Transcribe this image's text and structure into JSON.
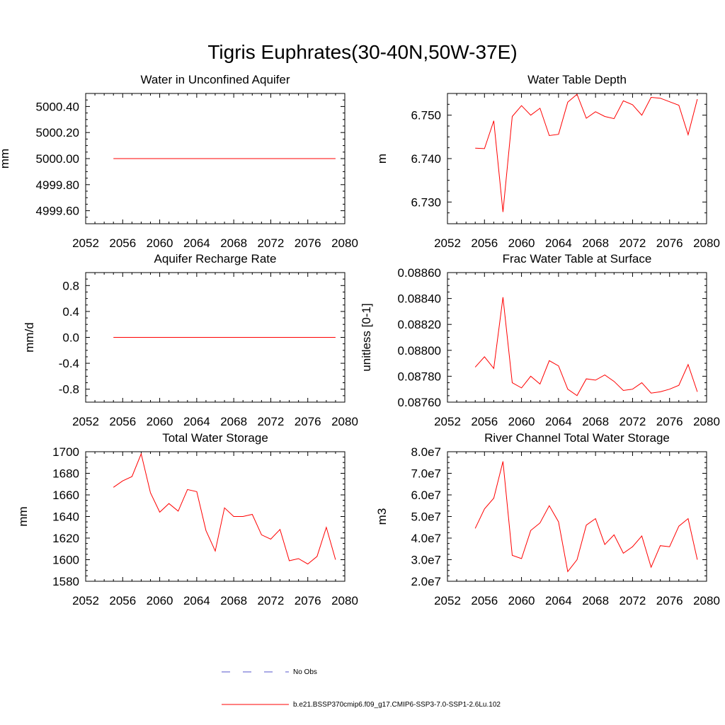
{
  "figure": {
    "title": "Tigris Euphrates(30-40N,50W-37E)"
  },
  "legend": {
    "obs_label": "No Obs",
    "obs_color": "#5555cc",
    "model_label": "b.e21.BSSP370cmip6.f09_g17.CMIP6-SSP3-7.0-SSP1-2.6Lu.102",
    "model_color": "#ff0000"
  },
  "chart_data": [
    {
      "type": "line",
      "title": "Water in Unconfined Aquifer",
      "ylabel": "mm",
      "xlim": [
        2052,
        2080
      ],
      "ylim": [
        4999.5,
        5000.5
      ],
      "xticks": [
        2052,
        2056,
        2060,
        2064,
        2068,
        2072,
        2076,
        2080
      ],
      "yticks": [
        4999.6,
        4999.8,
        5000.0,
        5000.2,
        5000.4
      ],
      "ytick_labels": [
        "4999.60",
        "4999.80",
        "5000.00",
        "5000.20",
        "5000.40"
      ],
      "x": [
        2055,
        2056,
        2057,
        2058,
        2059,
        2060,
        2061,
        2062,
        2063,
        2064,
        2065,
        2066,
        2067,
        2068,
        2069,
        2070,
        2071,
        2072,
        2073,
        2074,
        2075,
        2076,
        2077,
        2078,
        2079
      ],
      "series": [
        {
          "values": [
            5000,
            5000,
            5000,
            5000,
            5000,
            5000,
            5000,
            5000,
            5000,
            5000,
            5000,
            5000,
            5000,
            5000,
            5000,
            5000,
            5000,
            5000,
            5000,
            5000,
            5000,
            5000,
            5000,
            5000,
            5000
          ]
        }
      ]
    },
    {
      "type": "line",
      "title": "Water Table Depth",
      "ylabel": "m",
      "xlim": [
        2052,
        2080
      ],
      "ylim": [
        6.725,
        6.755
      ],
      "xticks": [
        2052,
        2056,
        2060,
        2064,
        2068,
        2072,
        2076,
        2080
      ],
      "yticks": [
        6.73,
        6.74,
        6.75
      ],
      "ytick_labels": [
        "6.730",
        "6.740",
        "6.750"
      ],
      "x": [
        2055,
        2056,
        2057,
        2058,
        2059,
        2060,
        2061,
        2062,
        2063,
        2064,
        2065,
        2066,
        2067,
        2068,
        2069,
        2070,
        2071,
        2072,
        2073,
        2074,
        2075,
        2076,
        2077,
        2078,
        2079
      ],
      "series": [
        {
          "values": [
            6.7424,
            6.7423,
            6.7487,
            6.7277,
            6.7497,
            6.7522,
            6.75,
            6.7516,
            6.7453,
            6.7456,
            6.753,
            6.7548,
            6.7493,
            6.7508,
            6.7497,
            6.7492,
            6.7533,
            6.7524,
            6.75,
            6.7541,
            6.7539,
            6.7531,
            6.7523,
            6.7455,
            6.7537
          ]
        }
      ]
    },
    {
      "type": "line",
      "title": "Aquifer Recharge Rate",
      "ylabel": "mm/d",
      "xlim": [
        2052,
        2080
      ],
      "ylim": [
        -1.0,
        1.0
      ],
      "xticks": [
        2052,
        2056,
        2060,
        2064,
        2068,
        2072,
        2076,
        2080
      ],
      "yticks": [
        -0.8,
        -0.4,
        0.0,
        0.4,
        0.8
      ],
      "ytick_labels": [
        "-0.8",
        "-0.4",
        "0.0",
        "0.4",
        "0.8"
      ],
      "x": [
        2055,
        2056,
        2057,
        2058,
        2059,
        2060,
        2061,
        2062,
        2063,
        2064,
        2065,
        2066,
        2067,
        2068,
        2069,
        2070,
        2071,
        2072,
        2073,
        2074,
        2075,
        2076,
        2077,
        2078,
        2079
      ],
      "series": [
        {
          "values": [
            0,
            0,
            0,
            0,
            0,
            0,
            0,
            0,
            0,
            0,
            0,
            0,
            0,
            0,
            0,
            0,
            0,
            0,
            0,
            0,
            0,
            0,
            0,
            0,
            0
          ]
        }
      ]
    },
    {
      "type": "line",
      "title": "Frac Water Table at Surface",
      "ylabel": "unitless [0-1]",
      "xlim": [
        2052,
        2080
      ],
      "ylim": [
        0.0876,
        0.0886
      ],
      "xticks": [
        2052,
        2056,
        2060,
        2064,
        2068,
        2072,
        2076,
        2080
      ],
      "yticks": [
        0.0876,
        0.0878,
        0.088,
        0.0882,
        0.0884,
        0.0886
      ],
      "ytick_labels": [
        "0.08760",
        "0.08780",
        "0.08800",
        "0.08820",
        "0.08840",
        "0.08860"
      ],
      "x": [
        2055,
        2056,
        2057,
        2058,
        2059,
        2060,
        2061,
        2062,
        2063,
        2064,
        2065,
        2066,
        2067,
        2068,
        2069,
        2070,
        2071,
        2072,
        2073,
        2074,
        2075,
        2076,
        2077,
        2078,
        2079
      ],
      "series": [
        {
          "values": [
            0.08787,
            0.08795,
            0.08786,
            0.08841,
            0.08775,
            0.08771,
            0.0878,
            0.08774,
            0.08792,
            0.08788,
            0.0877,
            0.08765,
            0.08778,
            0.08777,
            0.08781,
            0.08776,
            0.08769,
            0.0877,
            0.08775,
            0.08767,
            0.08768,
            0.0877,
            0.08773,
            0.08789,
            0.08768
          ]
        }
      ]
    },
    {
      "type": "line",
      "title": "Total Water Storage",
      "ylabel": "mm",
      "xlim": [
        2052,
        2080
      ],
      "ylim": [
        1580,
        1700
      ],
      "xticks": [
        2052,
        2056,
        2060,
        2064,
        2068,
        2072,
        2076,
        2080
      ],
      "yticks": [
        1580,
        1600,
        1620,
        1640,
        1660,
        1680,
        1700
      ],
      "ytick_labels": [
        "1580",
        "1600",
        "1620",
        "1640",
        "1660",
        "1680",
        "1700"
      ],
      "x": [
        2055,
        2056,
        2057,
        2058,
        2059,
        2060,
        2061,
        2062,
        2063,
        2064,
        2065,
        2066,
        2067,
        2068,
        2069,
        2070,
        2071,
        2072,
        2073,
        2074,
        2075,
        2076,
        2077,
        2078,
        2079
      ],
      "series": [
        {
          "values": [
            1667,
            1673,
            1677,
            1698,
            1662,
            1644,
            1652,
            1645,
            1665,
            1663,
            1627,
            1608,
            1648,
            1640,
            1640,
            1642,
            1623,
            1619,
            1628,
            1599,
            1601,
            1596,
            1603,
            1630,
            1600
          ]
        }
      ]
    },
    {
      "type": "line",
      "title": "River Channel Total Water Storage",
      "ylabel": "m3",
      "xlim": [
        2052,
        2080
      ],
      "ylim": [
        20000000,
        80000000
      ],
      "xticks": [
        2052,
        2056,
        2060,
        2064,
        2068,
        2072,
        2076,
        2080
      ],
      "yticks": [
        20000000,
        30000000,
        40000000,
        50000000,
        60000000,
        70000000,
        80000000
      ],
      "ytick_labels": [
        "2.0e7",
        "3.0e7",
        "4.0e7",
        "5.0e7",
        "6.0e7",
        "7.0e7",
        "8.0e7"
      ],
      "x": [
        2055,
        2056,
        2057,
        2058,
        2059,
        2060,
        2061,
        2062,
        2063,
        2064,
        2065,
        2066,
        2067,
        2068,
        2069,
        2070,
        2071,
        2072,
        2073,
        2074,
        2075,
        2076,
        2077,
        2078,
        2079
      ],
      "series": [
        {
          "values": [
            44500000,
            53500000,
            58500000,
            75500000,
            32000000,
            30500000,
            43500000,
            47000000,
            55000000,
            47500000,
            24500000,
            30000000,
            46000000,
            49000000,
            37000000,
            41500000,
            33000000,
            36000000,
            41000000,
            26500000,
            36500000,
            36000000,
            45500000,
            49000000,
            30000000
          ]
        }
      ]
    }
  ]
}
